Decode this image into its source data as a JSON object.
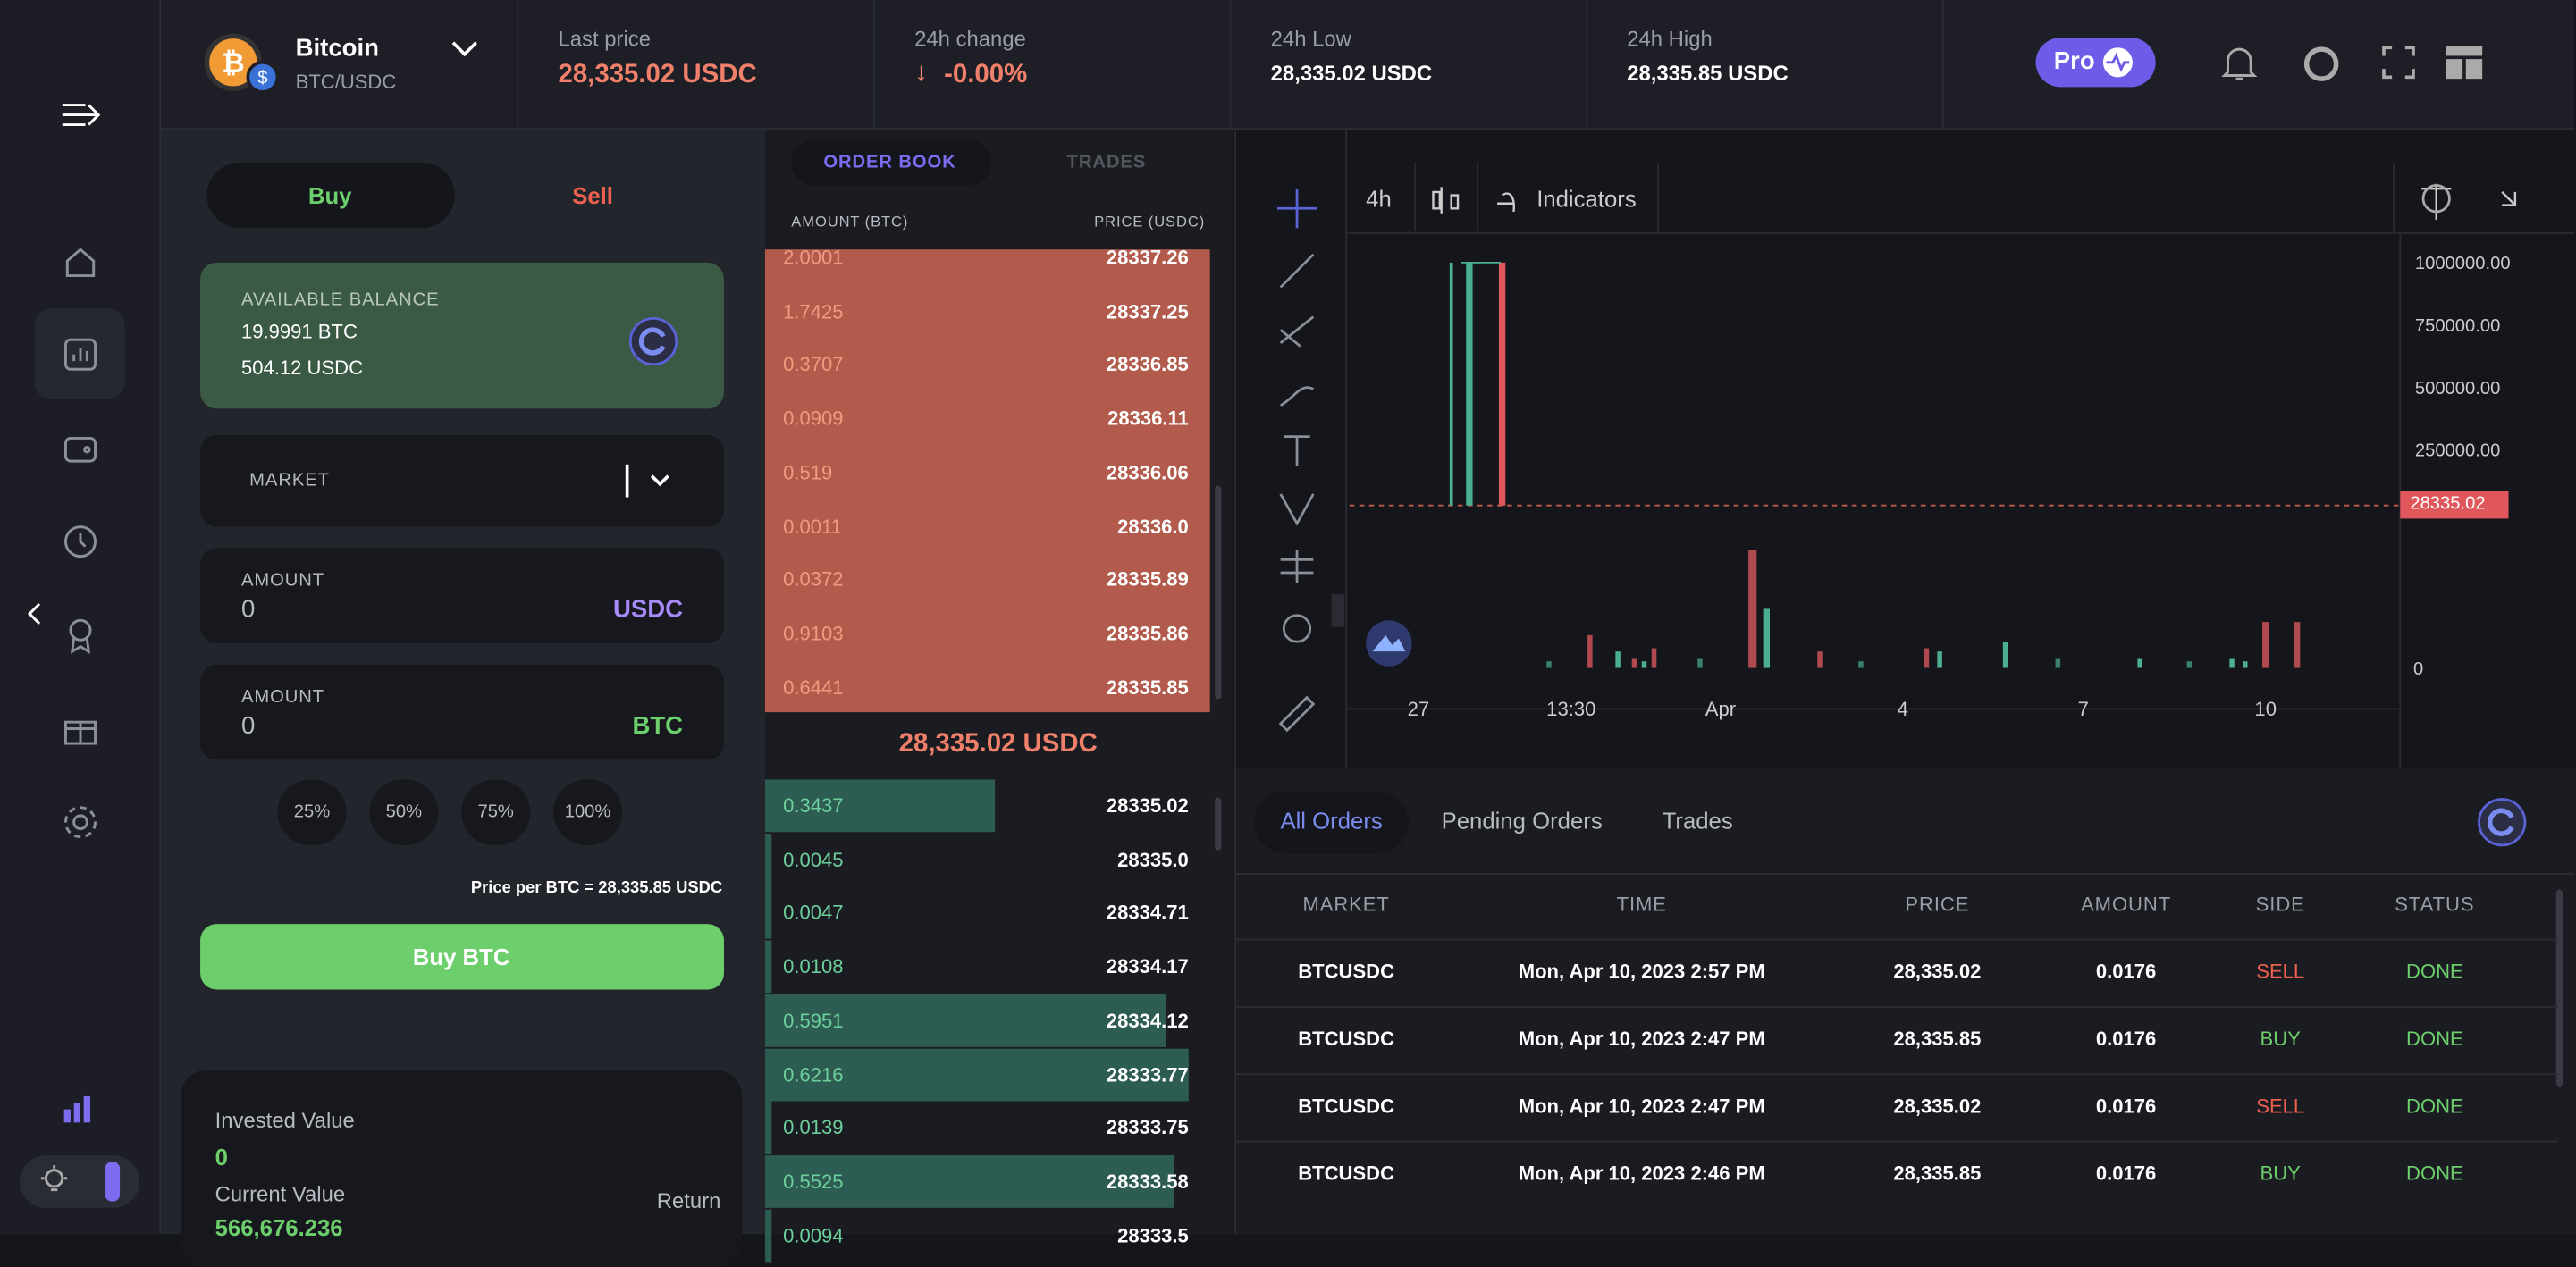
{
  "header": {
    "coin_name": "Bitcoin",
    "pair": "BTC/USDC",
    "stats": [
      {
        "label": "Last price",
        "value": "28,335.02 USDC"
      },
      {
        "label": "24h change",
        "value": "-0.00%"
      },
      {
        "label": "24h Low",
        "value": "28,335.02 USDC"
      },
      {
        "label": "24h High",
        "value": "28,335.85 USDC"
      }
    ],
    "pro": "Pro"
  },
  "trade_form": {
    "tabs": [
      "Buy",
      "Sell"
    ],
    "balance_label": "AVAILABLE BALANCE",
    "balances": [
      "19.9991 BTC",
      "504.12 USDC"
    ],
    "order_type": "MARKET",
    "amount_fields": [
      {
        "label": "AMOUNT",
        "value": "0",
        "unit": "USDC"
      },
      {
        "label": "AMOUNT",
        "value": "0",
        "unit": "BTC"
      }
    ],
    "percentages": [
      "25%",
      "50%",
      "75%",
      "100%"
    ],
    "price_note": "Price per BTC = 28,335.85 USDC",
    "submit": "Buy BTC"
  },
  "portfolio": {
    "invested_label": "Invested Value",
    "invested_value": "0",
    "current_label": "Current Value",
    "current_value": "566,676.236",
    "return_label": "Return"
  },
  "order_book": {
    "tabs": [
      "ORDER BOOK",
      "TRADES"
    ],
    "columns": [
      "AMOUNT (BTC)",
      "PRICE (USDC)"
    ],
    "asks": [
      [
        "2.0001",
        "28337.26"
      ],
      [
        "1.7425",
        "28337.25"
      ],
      [
        "0.3707",
        "28336.85"
      ],
      [
        "0.0909",
        "28336.11"
      ],
      [
        "0.519",
        "28336.06"
      ],
      [
        "0.0011",
        "28336.0"
      ],
      [
        "0.0372",
        "28335.89"
      ],
      [
        "0.9103",
        "28335.86"
      ],
      [
        "0.6441",
        "28335.85"
      ]
    ],
    "mid_price": "28,335.02 USDC",
    "bids": [
      [
        "0.3437",
        "28335.02"
      ],
      [
        "0.0045",
        "28335.0"
      ],
      [
        "0.0047",
        "28334.71"
      ],
      [
        "0.0108",
        "28334.17"
      ],
      [
        "0.5951",
        "28334.12"
      ],
      [
        "0.6216",
        "28333.77"
      ],
      [
        "0.0139",
        "28333.75"
      ],
      [
        "0.5525",
        "28333.58"
      ],
      [
        "0.0094",
        "28333.5"
      ]
    ]
  },
  "chart": {
    "interval": "4h",
    "indicators": "Indicators",
    "yticks": [
      "1000000.00",
      "750000.00",
      "500000.00",
      "250000.00"
    ],
    "volume_tick": "0",
    "last_price": "28335.02",
    "xticks": [
      "27",
      "13:30",
      "Apr",
      "4",
      "7",
      "10"
    ]
  },
  "orders": {
    "tabs": [
      "All Orders",
      "Pending Orders",
      "Trades"
    ],
    "columns": [
      "MARKET",
      "TIME",
      "PRICE",
      "AMOUNT",
      "SIDE",
      "STATUS"
    ],
    "rows": [
      [
        "BTCUSDC",
        "Mon, Apr 10, 2023 2:57 PM",
        "28,335.02",
        "0.0176",
        "SELL",
        "DONE"
      ],
      [
        "BTCUSDC",
        "Mon, Apr 10, 2023 2:47 PM",
        "28,335.85",
        "0.0176",
        "BUY",
        "DONE"
      ],
      [
        "BTCUSDC",
        "Mon, Apr 10, 2023 2:47 PM",
        "28,335.02",
        "0.0176",
        "SELL",
        "DONE"
      ],
      [
        "BTCUSDC",
        "Mon, Apr 10, 2023 2:46 PM",
        "28,335.85",
        "0.0176",
        "BUY",
        "DONE"
      ]
    ]
  }
}
